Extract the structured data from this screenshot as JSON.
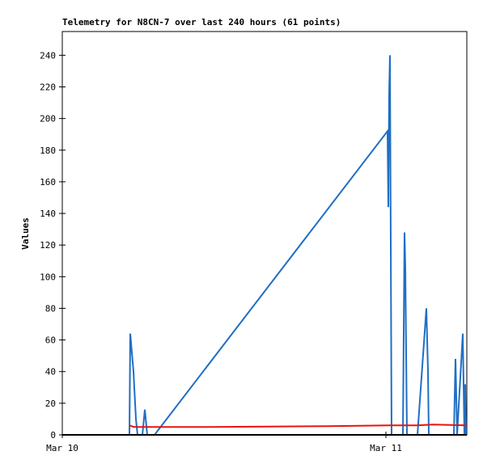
{
  "chart_data": {
    "type": "line",
    "title": "Telemetry for N8CN-7 over last 240 hours (61 points)",
    "y_label": "Values",
    "xlim": [
      0,
      30
    ],
    "xticks": [
      {
        "value": 0,
        "label": "Mar 10"
      },
      {
        "value": 24,
        "label": "Mar 11"
      }
    ],
    "ylim": [
      0,
      255
    ],
    "yticks": [
      0,
      20,
      40,
      60,
      80,
      100,
      120,
      140,
      160,
      180,
      200,
      220,
      240
    ],
    "series": [
      {
        "color": "#1f6fc4",
        "x": [
          4.98,
          5.04,
          5.28,
          5.46,
          5.58,
          5.94,
          6.12,
          6.3,
          6.84,
          24.12,
          24.18,
          24.24,
          24.3,
          24.36,
          24.42,
          25.26,
          25.38,
          25.44,
          25.56,
          26.34,
          27.0,
          27.12,
          27.18,
          27.3,
          29.04,
          29.16,
          29.28,
          29.7,
          29.82,
          29.88,
          29.94
        ],
        "values": [
          0,
          64,
          40,
          10,
          0,
          0,
          16,
          0,
          0,
          192,
          144,
          216,
          240,
          120,
          0,
          0,
          128,
          105,
          0,
          0,
          80,
          40,
          0,
          0,
          0,
          48,
          0,
          64,
          0,
          32,
          0
        ]
      },
      {
        "color": "#e8140f",
        "x": [
          4.98,
          5.3,
          6.0,
          11.0,
          19.7,
          24.3,
          25.0,
          26.3,
          27.5,
          30.0
        ],
        "values": [
          6,
          5,
          5,
          5,
          5.5,
          6,
          6,
          6,
          6.5,
          6
        ]
      }
    ]
  }
}
